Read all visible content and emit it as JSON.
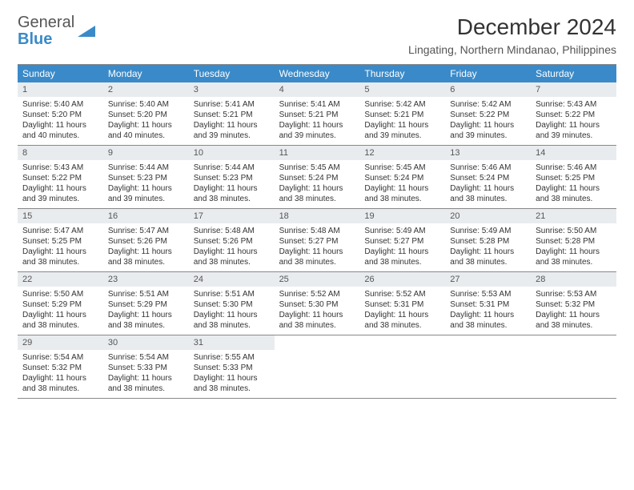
{
  "logo": {
    "general": "General",
    "blue": "Blue",
    "triangle_color": "#3a8ac9"
  },
  "title": "December 2024",
  "location": "Lingating, Northern Mindanao, Philippines",
  "colors": {
    "header_bg": "#3a8ac9",
    "header_text": "#ffffff",
    "daynum_bg": "#e9ecef",
    "border": "#888888",
    "body_text": "#333333"
  },
  "weekdays": [
    "Sunday",
    "Monday",
    "Tuesday",
    "Wednesday",
    "Thursday",
    "Friday",
    "Saturday"
  ],
  "weeks": [
    [
      {
        "n": "1",
        "sr": "Sunrise: 5:40 AM",
        "ss": "Sunset: 5:20 PM",
        "dl": "Daylight: 11 hours and 40 minutes."
      },
      {
        "n": "2",
        "sr": "Sunrise: 5:40 AM",
        "ss": "Sunset: 5:20 PM",
        "dl": "Daylight: 11 hours and 40 minutes."
      },
      {
        "n": "3",
        "sr": "Sunrise: 5:41 AM",
        "ss": "Sunset: 5:21 PM",
        "dl": "Daylight: 11 hours and 39 minutes."
      },
      {
        "n": "4",
        "sr": "Sunrise: 5:41 AM",
        "ss": "Sunset: 5:21 PM",
        "dl": "Daylight: 11 hours and 39 minutes."
      },
      {
        "n": "5",
        "sr": "Sunrise: 5:42 AM",
        "ss": "Sunset: 5:21 PM",
        "dl": "Daylight: 11 hours and 39 minutes."
      },
      {
        "n": "6",
        "sr": "Sunrise: 5:42 AM",
        "ss": "Sunset: 5:22 PM",
        "dl": "Daylight: 11 hours and 39 minutes."
      },
      {
        "n": "7",
        "sr": "Sunrise: 5:43 AM",
        "ss": "Sunset: 5:22 PM",
        "dl": "Daylight: 11 hours and 39 minutes."
      }
    ],
    [
      {
        "n": "8",
        "sr": "Sunrise: 5:43 AM",
        "ss": "Sunset: 5:22 PM",
        "dl": "Daylight: 11 hours and 39 minutes."
      },
      {
        "n": "9",
        "sr": "Sunrise: 5:44 AM",
        "ss": "Sunset: 5:23 PM",
        "dl": "Daylight: 11 hours and 39 minutes."
      },
      {
        "n": "10",
        "sr": "Sunrise: 5:44 AM",
        "ss": "Sunset: 5:23 PM",
        "dl": "Daylight: 11 hours and 38 minutes."
      },
      {
        "n": "11",
        "sr": "Sunrise: 5:45 AM",
        "ss": "Sunset: 5:24 PM",
        "dl": "Daylight: 11 hours and 38 minutes."
      },
      {
        "n": "12",
        "sr": "Sunrise: 5:45 AM",
        "ss": "Sunset: 5:24 PM",
        "dl": "Daylight: 11 hours and 38 minutes."
      },
      {
        "n": "13",
        "sr": "Sunrise: 5:46 AM",
        "ss": "Sunset: 5:24 PM",
        "dl": "Daylight: 11 hours and 38 minutes."
      },
      {
        "n": "14",
        "sr": "Sunrise: 5:46 AM",
        "ss": "Sunset: 5:25 PM",
        "dl": "Daylight: 11 hours and 38 minutes."
      }
    ],
    [
      {
        "n": "15",
        "sr": "Sunrise: 5:47 AM",
        "ss": "Sunset: 5:25 PM",
        "dl": "Daylight: 11 hours and 38 minutes."
      },
      {
        "n": "16",
        "sr": "Sunrise: 5:47 AM",
        "ss": "Sunset: 5:26 PM",
        "dl": "Daylight: 11 hours and 38 minutes."
      },
      {
        "n": "17",
        "sr": "Sunrise: 5:48 AM",
        "ss": "Sunset: 5:26 PM",
        "dl": "Daylight: 11 hours and 38 minutes."
      },
      {
        "n": "18",
        "sr": "Sunrise: 5:48 AM",
        "ss": "Sunset: 5:27 PM",
        "dl": "Daylight: 11 hours and 38 minutes."
      },
      {
        "n": "19",
        "sr": "Sunrise: 5:49 AM",
        "ss": "Sunset: 5:27 PM",
        "dl": "Daylight: 11 hours and 38 minutes."
      },
      {
        "n": "20",
        "sr": "Sunrise: 5:49 AM",
        "ss": "Sunset: 5:28 PM",
        "dl": "Daylight: 11 hours and 38 minutes."
      },
      {
        "n": "21",
        "sr": "Sunrise: 5:50 AM",
        "ss": "Sunset: 5:28 PM",
        "dl": "Daylight: 11 hours and 38 minutes."
      }
    ],
    [
      {
        "n": "22",
        "sr": "Sunrise: 5:50 AM",
        "ss": "Sunset: 5:29 PM",
        "dl": "Daylight: 11 hours and 38 minutes."
      },
      {
        "n": "23",
        "sr": "Sunrise: 5:51 AM",
        "ss": "Sunset: 5:29 PM",
        "dl": "Daylight: 11 hours and 38 minutes."
      },
      {
        "n": "24",
        "sr": "Sunrise: 5:51 AM",
        "ss": "Sunset: 5:30 PM",
        "dl": "Daylight: 11 hours and 38 minutes."
      },
      {
        "n": "25",
        "sr": "Sunrise: 5:52 AM",
        "ss": "Sunset: 5:30 PM",
        "dl": "Daylight: 11 hours and 38 minutes."
      },
      {
        "n": "26",
        "sr": "Sunrise: 5:52 AM",
        "ss": "Sunset: 5:31 PM",
        "dl": "Daylight: 11 hours and 38 minutes."
      },
      {
        "n": "27",
        "sr": "Sunrise: 5:53 AM",
        "ss": "Sunset: 5:31 PM",
        "dl": "Daylight: 11 hours and 38 minutes."
      },
      {
        "n": "28",
        "sr": "Sunrise: 5:53 AM",
        "ss": "Sunset: 5:32 PM",
        "dl": "Daylight: 11 hours and 38 minutes."
      }
    ],
    [
      {
        "n": "29",
        "sr": "Sunrise: 5:54 AM",
        "ss": "Sunset: 5:32 PM",
        "dl": "Daylight: 11 hours and 38 minutes."
      },
      {
        "n": "30",
        "sr": "Sunrise: 5:54 AM",
        "ss": "Sunset: 5:33 PM",
        "dl": "Daylight: 11 hours and 38 minutes."
      },
      {
        "n": "31",
        "sr": "Sunrise: 5:55 AM",
        "ss": "Sunset: 5:33 PM",
        "dl": "Daylight: 11 hours and 38 minutes."
      },
      null,
      null,
      null,
      null
    ]
  ]
}
